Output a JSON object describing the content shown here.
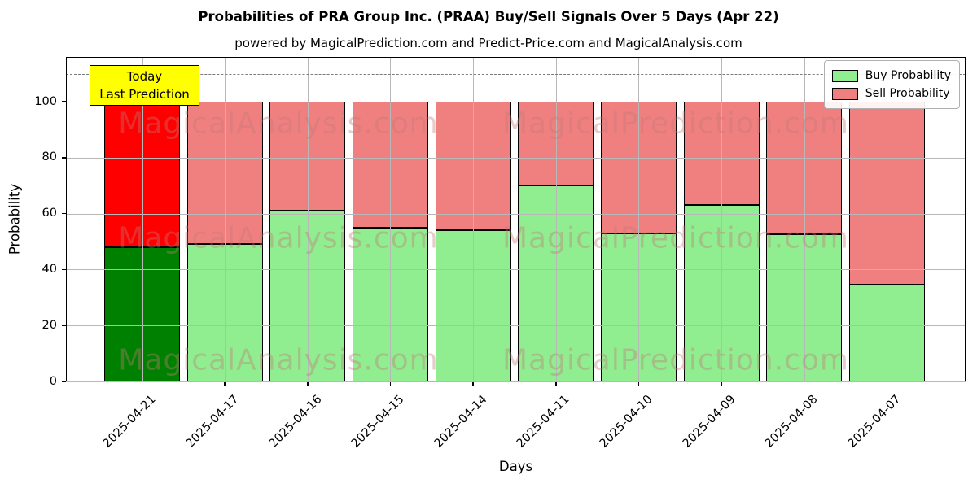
{
  "chart": {
    "title": "Probabilities of PRA Group Inc. (PRAA) Buy/Sell Signals Over 5 Days (Apr 22)",
    "subtitle": "powered by MagicalPrediction.com and Predict-Price.com and MagicalAnalysis.com",
    "xlabel": "Days",
    "ylabel": "Probability",
    "annotation": {
      "line1": "Today",
      "line2": "Last Prediction",
      "bg_color": "#ffff00",
      "border_color": "#000000"
    },
    "watermarks": [
      "MagicalAnalysis.com",
      "MagicalPrediction.com"
    ],
    "watermark_color": "#c27a7a"
  },
  "chart_data": {
    "type": "bar",
    "stacked": true,
    "title": "Probabilities of PRA Group Inc. (PRAA) Buy/Sell Signals Over 5 Days (Apr 22)",
    "xlabel": "Days",
    "ylabel": "Probability",
    "categories": [
      "2025-04-21",
      "2025-04-17",
      "2025-04-16",
      "2025-04-15",
      "2025-04-14",
      "2025-04-11",
      "2025-04-10",
      "2025-04-09",
      "2025-04-08",
      "2025-04-07"
    ],
    "series": [
      {
        "name": "Buy Probability",
        "color": "#90ee90",
        "values": [
          48,
          49,
          61,
          55,
          54,
          70,
          53,
          63,
          52.5,
          34.5
        ]
      },
      {
        "name": "Sell Probability",
        "color": "#f08080",
        "values": [
          52,
          51,
          39,
          45,
          46,
          30,
          47,
          37,
          47.5,
          65.5
        ]
      }
    ],
    "highlight_index": 0,
    "highlight_colors": {
      "buy": "#008000",
      "sell": "#ff0000"
    },
    "bar_edge_color": "#000000",
    "yticks": [
      0,
      20,
      40,
      60,
      80,
      100
    ],
    "ylim": [
      0,
      116
    ],
    "dashed_line_y": 110,
    "dashed_line_color": "#7a7a7a",
    "grid": true,
    "grid_color": "#b8b8b8",
    "legend_position": "upper right",
    "legend_entries": [
      "Buy Probability",
      "Sell Probability"
    ]
  }
}
